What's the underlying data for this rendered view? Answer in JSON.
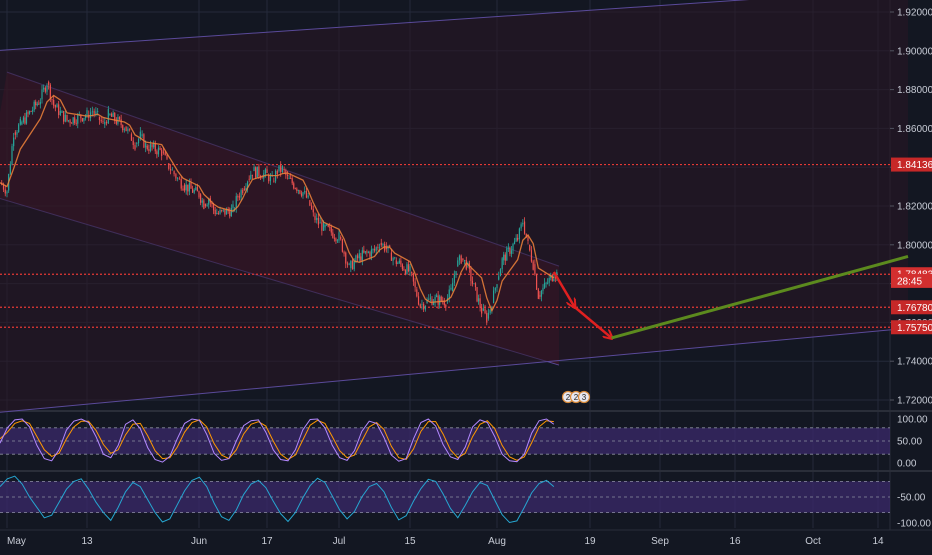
{
  "colors": {
    "background": "#131722",
    "grid": "#242a3a",
    "candle_up": "#26a69a",
    "candle_down": "#ef5350",
    "channel_fill": "#3a1420",
    "channel_line": "#5a4a9a",
    "level_line": "#e53935",
    "arrow": "#e02020",
    "trend": "#5c8a1e",
    "sma": "#f0833a",
    "stoch_k": "#b388ff",
    "stoch_d": "#ff9800",
    "osc_band": "#3b2a6b",
    "osc2_line": "#26a6d1",
    "axis_text": "#c8ccd6",
    "price_tag": "#d32f2f"
  },
  "price_axis": {
    "ticks": [
      "1.92000",
      "1.90000",
      "1.88000",
      "1.86000",
      "1.84000",
      "1.82000",
      "1.80000",
      "1.78000",
      "1.76000",
      "1.74000",
      "1.72000"
    ],
    "labels": [
      {
        "text": "1.84136",
        "value": 1.84136,
        "kind": "level"
      },
      {
        "text": "1.78483",
        "value": 1.78483,
        "kind": "current"
      },
      {
        "text": "28:45",
        "value": 1.7814,
        "kind": "countdown"
      },
      {
        "text": "1.76780",
        "value": 1.7678,
        "kind": "level"
      },
      {
        "text": "1.75750",
        "value": 1.7575,
        "kind": "level"
      }
    ]
  },
  "time_axis": {
    "labels": [
      "May",
      "13",
      "Jun",
      "17",
      "Jul",
      "15",
      "Aug",
      "19",
      "Sep",
      "16",
      "Oct",
      "14"
    ]
  },
  "osc1": {
    "ticks": [
      "100.00",
      "50.00",
      "0.00"
    ]
  },
  "osc2": {
    "ticks": [
      "-50.00",
      "-100.00"
    ]
  },
  "event_badges": [
    "2",
    "2",
    "3"
  ],
  "chart_data": [
    {
      "type": "line",
      "title": "",
      "ylim": [
        1.712,
        1.928
      ],
      "series": [
        {
          "values_by_date": [
            [
              "2019-04-30",
              1.832
            ],
            [
              "2019-05-01",
              1.828
            ],
            [
              "2019-05-02",
              1.858
            ],
            [
              "2019-05-03",
              1.862
            ],
            [
              "2019-05-06",
              1.875
            ],
            [
              "2019-05-07",
              1.884
            ],
            [
              "2019-05-08",
              1.872
            ],
            [
              "2019-05-09",
              1.868
            ],
            [
              "2019-05-10",
              1.864
            ],
            [
              "2019-05-13",
              1.867
            ],
            [
              "2019-05-14",
              1.869
            ],
            [
              "2019-05-15",
              1.866
            ],
            [
              "2019-05-16",
              1.862
            ],
            [
              "2019-05-17",
              1.867
            ],
            [
              "2019-05-20",
              1.861
            ],
            [
              "2019-05-21",
              1.857
            ],
            [
              "2019-05-22",
              1.852
            ],
            [
              "2019-05-23",
              1.856
            ],
            [
              "2019-05-24",
              1.851
            ],
            [
              "2019-05-27",
              1.848
            ],
            [
              "2019-05-28",
              1.842
            ],
            [
              "2019-05-29",
              1.838
            ],
            [
              "2019-05-30",
              1.834
            ],
            [
              "2019-05-31",
              1.831
            ],
            [
              "2019-06-03",
              1.826
            ],
            [
              "2019-06-04",
              1.821
            ],
            [
              "2019-06-05",
              1.824
            ],
            [
              "2019-06-06",
              1.818
            ],
            [
              "2019-06-07",
              1.816
            ],
            [
              "2019-06-10",
              1.818
            ],
            [
              "2019-06-11",
              1.825
            ],
            [
              "2019-06-12",
              1.829
            ],
            [
              "2019-06-13",
              1.834
            ],
            [
              "2019-06-14",
              1.838
            ],
            [
              "2019-06-17",
              1.836
            ],
            [
              "2019-06-18",
              1.833
            ],
            [
              "2019-06-19",
              1.838
            ],
            [
              "2019-06-20",
              1.839
            ],
            [
              "2019-06-21",
              1.834
            ],
            [
              "2019-06-24",
              1.827
            ],
            [
              "2019-06-25",
              1.823
            ],
            [
              "2019-06-26",
              1.815
            ],
            [
              "2019-06-27",
              1.811
            ],
            [
              "2019-06-28",
              1.809
            ],
            [
              "2019-07-01",
              1.804
            ],
            [
              "2019-07-02",
              1.796
            ],
            [
              "2019-07-03",
              1.788
            ],
            [
              "2019-07-04",
              1.791
            ],
            [
              "2019-07-05",
              1.794
            ],
            [
              "2019-07-08",
              1.797
            ],
            [
              "2019-07-09",
              1.801
            ],
            [
              "2019-07-10",
              1.799
            ],
            [
              "2019-07-11",
              1.796
            ],
            [
              "2019-07-12",
              1.792
            ],
            [
              "2019-07-15",
              1.786
            ],
            [
              "2019-07-16",
              1.777
            ],
            [
              "2019-07-17",
              1.769
            ],
            [
              "2019-07-18",
              1.77
            ],
            [
              "2019-07-19",
              1.772
            ],
            [
              "2019-07-22",
              1.771
            ],
            [
              "2019-07-23",
              1.776
            ],
            [
              "2019-07-24",
              1.789
            ],
            [
              "2019-07-25",
              1.793
            ],
            [
              "2019-07-26",
              1.79
            ],
            [
              "2019-07-29",
              1.766
            ],
            [
              "2019-07-30",
              1.762
            ],
            [
              "2019-07-31",
              1.77
            ],
            [
              "2019-08-01",
              1.782
            ],
            [
              "2019-08-02",
              1.792
            ],
            [
              "2019-08-05",
              1.803
            ],
            [
              "2019-08-06",
              1.812
            ],
            [
              "2019-08-07",
              1.8
            ],
            [
              "2019-08-08",
              1.79
            ],
            [
              "2019-08-09",
              1.774
            ],
            [
              "2019-08-12",
              1.785
            ]
          ]
        }
      ],
      "channels": [
        {
          "upper_from": [
            "2019-05-01",
            1.889
          ],
          "upper_to": [
            "2019-08-13",
            1.789
          ],
          "lower_from": [
            "2019-04-28",
            1.826
          ],
          "lower_to": [
            "2019-08-13",
            1.738
          ]
        },
        {
          "upper_from": [
            "2019-04-25",
            1.899
          ],
          "upper_to": [
            "2019-10-20",
            1.932
          ],
          "lower_from": [
            "2019-04-25",
            1.712
          ],
          "lower_to": [
            "2019-10-20",
            1.757
          ]
        }
      ],
      "horizontal_levels": [
        1.84136,
        1.78483,
        1.7678,
        1.7575
      ],
      "arrows": [
        {
          "from": [
            "2019-08-12",
            1.786
          ],
          "to": [
            "2019-08-16",
            1.768
          ]
        },
        {
          "from": [
            "2019-08-16",
            1.768
          ],
          "to": [
            "2019-08-23",
            1.752
          ]
        }
      ],
      "projection_line": {
        "from": [
          "2019-08-23",
          1.752
        ],
        "to": [
          "2019-10-20",
          1.794
        ]
      }
    },
    {
      "type": "line",
      "title": "",
      "ylim": [
        0,
        100
      ],
      "series": [
        {
          "values": [
            45,
            80,
            98,
            100,
            82,
            40,
            10,
            5,
            30,
            75,
            95,
            100,
            92,
            60,
            20,
            12,
            40,
            88,
            98,
            78,
            35,
            8,
            2,
            15,
            55,
            90,
            100,
            97,
            65,
            22,
            6,
            10,
            50,
            85,
            96,
            98,
            70,
            30,
            8,
            5,
            30,
            75,
            99,
            100,
            80,
            40,
            12,
            6,
            28,
            72,
            95,
            90,
            58,
            18,
            4,
            10,
            55,
            92,
            100,
            84,
            42,
            14,
            8,
            36,
            82,
            98,
            92,
            60,
            20,
            5,
            3,
            20,
            68,
            96,
            100,
            88
          ]
        },
        {
          "values": [
            55,
            70,
            90,
            96,
            90,
            60,
            30,
            15,
            22,
            55,
            82,
            95,
            95,
            74,
            42,
            22,
            30,
            64,
            88,
            90,
            62,
            28,
            10,
            12,
            36,
            70,
            92,
            98,
            82,
            44,
            18,
            10,
            30,
            66,
            88,
            94,
            84,
            50,
            20,
            8,
            18,
            52,
            86,
            97,
            90,
            60,
            28,
            12,
            18,
            50,
            82,
            92,
            76,
            38,
            12,
            8,
            32,
            72,
            94,
            94,
            66,
            30,
            12,
            22,
            60,
            88,
            96,
            78,
            40,
            14,
            6,
            14,
            46,
            82,
            96,
            94
          ]
        }
      ]
    },
    {
      "type": "line",
      "title": "",
      "ylim": [
        -105,
        0
      ],
      "series": [
        {
          "values": [
            -30,
            -15,
            -10,
            -25,
            -50,
            -70,
            -90,
            -85,
            -60,
            -35,
            -20,
            -15,
            -35,
            -60,
            -80,
            -95,
            -70,
            -40,
            -22,
            -30,
            -55,
            -80,
            -98,
            -92,
            -65,
            -38,
            -18,
            -12,
            -30,
            -62,
            -88,
            -95,
            -75,
            -45,
            -25,
            -18,
            -32,
            -58,
            -82,
            -97,
            -80,
            -52,
            -28,
            -14,
            -22,
            -48,
            -75,
            -92,
            -78,
            -50,
            -30,
            -24,
            -40,
            -70,
            -94,
            -86,
            -58,
            -34,
            -16,
            -20,
            -44,
            -72,
            -90,
            -66,
            -40,
            -22,
            -28,
            -56,
            -84,
            -99,
            -96,
            -70,
            -42,
            -24,
            -18,
            -30
          ]
        }
      ]
    }
  ]
}
